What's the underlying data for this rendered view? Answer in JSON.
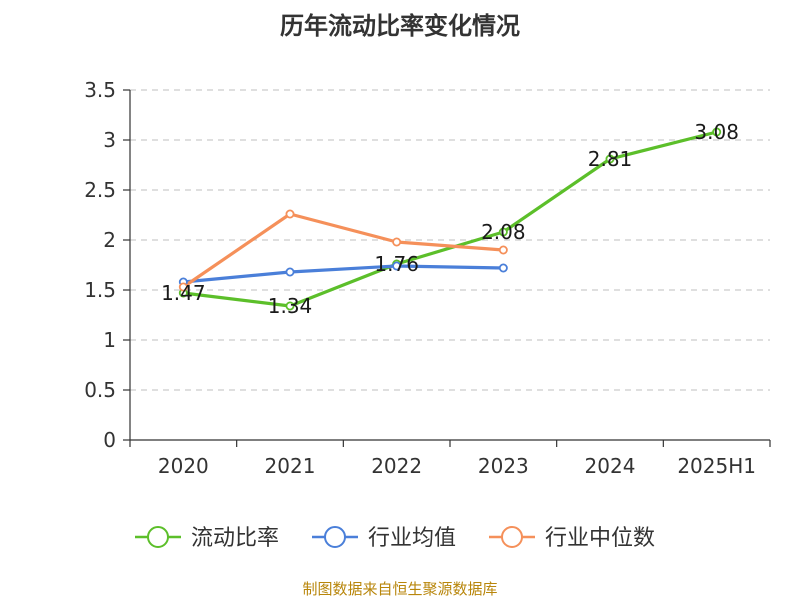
{
  "chart_data": {
    "type": "line",
    "title": "历年流动比率变化情况",
    "categories": [
      "2020",
      "2021",
      "2022",
      "2023",
      "2024",
      "2025H1"
    ],
    "ylim": [
      0,
      3.5
    ],
    "yticks": [
      0,
      0.5,
      1,
      1.5,
      2,
      2.5,
      3,
      3.5
    ],
    "ytick_labels": [
      "0",
      "0.5",
      "1",
      "1.5",
      "2",
      "2.5",
      "3",
      "3.5"
    ],
    "grid": "horizontal-dashed",
    "legend_position": "bottom",
    "series": [
      {
        "name": "流动比率",
        "color": "#5cbf2a",
        "values": [
          1.47,
          1.34,
          1.76,
          2.08,
          2.81,
          3.08
        ],
        "labels": [
          "1.47",
          "1.34",
          "1.76",
          "2.08",
          "2.81",
          "3.08"
        ]
      },
      {
        "name": "行业均值",
        "color": "#4a7fd9",
        "values": [
          1.58,
          1.68,
          1.74,
          1.72,
          null,
          null
        ]
      },
      {
        "name": "行业中位数",
        "color": "#f5905a",
        "values": [
          1.53,
          2.26,
          1.98,
          1.9,
          null,
          null
        ]
      }
    ]
  },
  "footer": {
    "source": "制图数据来自恒生聚源数据库"
  }
}
